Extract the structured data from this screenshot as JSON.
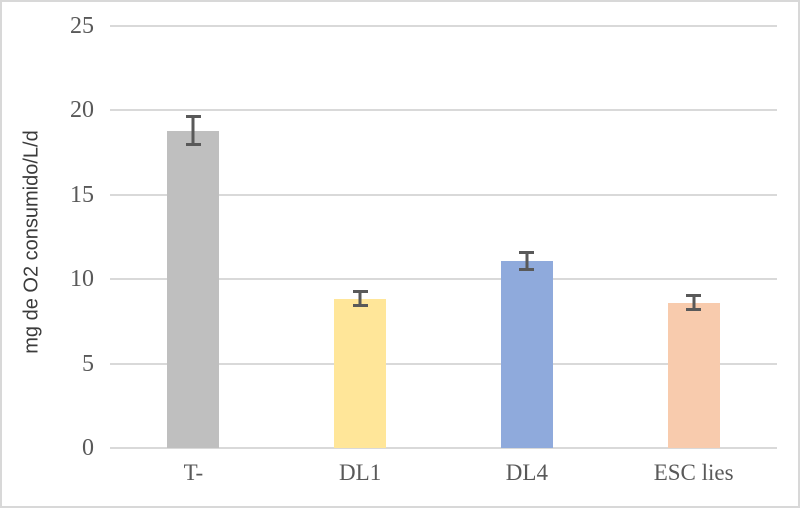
{
  "chart_data": {
    "type": "bar",
    "title": "",
    "xlabel": "",
    "ylabel": "mg de O2 consumido/L/d",
    "categories": [
      "T-",
      "DL1",
      "DL4",
      "ESC lies"
    ],
    "values": [
      18.8,
      8.85,
      11.1,
      8.6
    ],
    "error_bars": [
      0.9,
      0.5,
      0.6,
      0.5
    ],
    "bar_colors": [
      "#BFBFBF",
      "#FFE699",
      "#8FAADC",
      "#F8CBAD"
    ],
    "ylim": [
      0,
      25
    ],
    "yticks": [
      0,
      5,
      10,
      15,
      20,
      25
    ],
    "grid": "horizontal",
    "legend": false,
    "gridline_color": "#D9D9D9",
    "axis_line_color": "#D9D9D9",
    "error_bar_color": "#595959",
    "tick_label_color": "#595959",
    "axis_title_color": "#3B3B3B",
    "chart_border_color": "#D8D8D8",
    "background_color": "#FFFFFF"
  }
}
